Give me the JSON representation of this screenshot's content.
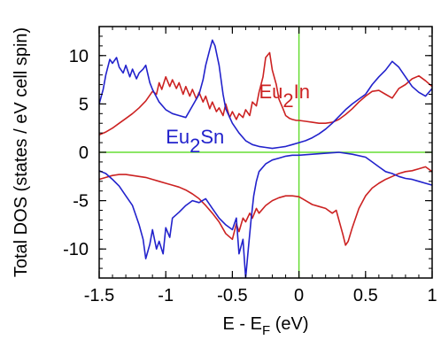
{
  "chart_data": {
    "type": "line",
    "title": "",
    "xlabel_main": "E - E",
    "xlabel_sub": "F",
    "xlabel_tail": " (eV)",
    "ylabel": "Total DOS (states / eV cell spin)",
    "xlim": [
      -1.5,
      1.0
    ],
    "ylim": [
      -13,
      13
    ],
    "xticks": [
      -1.5,
      -1.0,
      -0.5,
      0.0,
      0.5,
      1.0
    ],
    "xtick_labels": [
      "-1.5",
      "-1",
      "-0.5",
      "0",
      "0.5",
      "1"
    ],
    "yticks": [
      -10,
      -5,
      0,
      5,
      10
    ],
    "ytick_labels": [
      "-10",
      "-5",
      "0",
      "5",
      "10"
    ],
    "reference_color": "#66dd33",
    "annotations": [
      {
        "base": "Eu",
        "sub": "2",
        "tail": "In",
        "color": "#cc2222",
        "x": -0.3,
        "y": 5.6
      },
      {
        "base": "Eu",
        "sub": "2",
        "tail": "Sn",
        "color": "#2222cc",
        "x": -1.0,
        "y": 0.9
      }
    ],
    "series": [
      {
        "name": "Eu2In",
        "color": "#cc2222",
        "up_x": [
          -1.5,
          -1.45,
          -1.4,
          -1.35,
          -1.3,
          -1.25,
          -1.2,
          -1.15,
          -1.1,
          -1.07,
          -1.05,
          -1.03,
          -1.0,
          -0.97,
          -0.95,
          -0.92,
          -0.9,
          -0.87,
          -0.85,
          -0.82,
          -0.8,
          -0.77,
          -0.75,
          -0.72,
          -0.7,
          -0.67,
          -0.65,
          -0.62,
          -0.6,
          -0.57,
          -0.55,
          -0.52,
          -0.5,
          -0.47,
          -0.45,
          -0.42,
          -0.4,
          -0.37,
          -0.35,
          -0.32,
          -0.3,
          -0.27,
          -0.25,
          -0.22,
          -0.2,
          -0.17,
          -0.15,
          -0.12,
          -0.1,
          -0.07,
          -0.05,
          -0.02,
          0.0,
          0.05,
          0.1,
          0.15,
          0.2,
          0.25,
          0.3,
          0.35,
          0.4,
          0.45,
          0.5,
          0.55,
          0.6,
          0.65,
          0.7,
          0.75,
          0.8,
          0.85,
          0.9,
          0.95,
          1.0
        ],
        "up_y": [
          1.8,
          2.1,
          2.5,
          3.0,
          3.5,
          4.0,
          4.6,
          5.3,
          6.3,
          6.0,
          7.2,
          6.5,
          7.8,
          6.8,
          7.5,
          6.6,
          7.2,
          6.0,
          6.8,
          5.8,
          6.5,
          5.5,
          6.2,
          5.2,
          5.8,
          4.5,
          5.2,
          4.2,
          4.6,
          3.8,
          5.0,
          3.6,
          4.2,
          3.4,
          4.0,
          3.6,
          4.4,
          3.8,
          5.2,
          4.8,
          6.2,
          7.8,
          9.8,
          10.3,
          8.5,
          7.0,
          5.5,
          4.5,
          3.8,
          3.5,
          3.4,
          3.3,
          3.3,
          3.2,
          3.1,
          3.0,
          3.0,
          3.1,
          3.4,
          3.9,
          4.5,
          5.2,
          5.8,
          6.3,
          6.4,
          6.0,
          5.6,
          6.6,
          7.0,
          7.6,
          7.9,
          7.4,
          6.8
        ],
        "dn_x": [
          -1.5,
          -1.45,
          -1.4,
          -1.35,
          -1.3,
          -1.25,
          -1.2,
          -1.15,
          -1.1,
          -1.05,
          -1.0,
          -0.95,
          -0.9,
          -0.85,
          -0.8,
          -0.75,
          -0.7,
          -0.65,
          -0.6,
          -0.55,
          -0.5,
          -0.47,
          -0.45,
          -0.42,
          -0.4,
          -0.37,
          -0.35,
          -0.32,
          -0.3,
          -0.25,
          -0.2,
          -0.15,
          -0.1,
          -0.05,
          0.0,
          0.05,
          0.1,
          0.15,
          0.2,
          0.25,
          0.28,
          0.3,
          0.33,
          0.35,
          0.37,
          0.4,
          0.45,
          0.5,
          0.55,
          0.6,
          0.65,
          0.7,
          0.75,
          0.8,
          0.85,
          0.9,
          0.95,
          1.0
        ],
        "dn_y": [
          -2.8,
          -2.6,
          -2.4,
          -2.3,
          -2.3,
          -2.4,
          -2.5,
          -2.6,
          -2.8,
          -3.0,
          -3.2,
          -3.4,
          -3.6,
          -3.9,
          -4.3,
          -4.8,
          -5.5,
          -6.3,
          -7.2,
          -8.4,
          -9.0,
          -7.4,
          -8.2,
          -6.8,
          -7.2,
          -6.3,
          -6.8,
          -5.8,
          -6.3,
          -5.5,
          -5.0,
          -4.7,
          -4.5,
          -4.5,
          -4.6,
          -5.0,
          -5.4,
          -5.6,
          -5.8,
          -6.3,
          -6.0,
          -7.0,
          -8.5,
          -9.6,
          -9.2,
          -7.8,
          -5.8,
          -4.5,
          -3.7,
          -3.2,
          -2.8,
          -2.5,
          -2.2,
          -2.0,
          -1.9,
          -1.7,
          -1.5,
          -2.0
        ]
      },
      {
        "name": "Eu2Sn",
        "color": "#2222cc",
        "up_x": [
          -1.5,
          -1.47,
          -1.45,
          -1.42,
          -1.4,
          -1.37,
          -1.35,
          -1.32,
          -1.3,
          -1.27,
          -1.25,
          -1.22,
          -1.2,
          -1.17,
          -1.15,
          -1.12,
          -1.1,
          -1.05,
          -1.0,
          -0.95,
          -0.9,
          -0.85,
          -0.8,
          -0.75,
          -0.72,
          -0.7,
          -0.67,
          -0.65,
          -0.63,
          -0.6,
          -0.57,
          -0.55,
          -0.5,
          -0.45,
          -0.4,
          -0.35,
          -0.3,
          -0.25,
          -0.2,
          -0.15,
          -0.1,
          -0.05,
          0.0,
          0.05,
          0.1,
          0.15,
          0.2,
          0.25,
          0.3,
          0.35,
          0.4,
          0.45,
          0.5,
          0.55,
          0.6,
          0.65,
          0.7,
          0.75,
          0.8,
          0.85,
          0.9,
          0.95,
          1.0
        ],
        "up_y": [
          5.0,
          6.5,
          8.0,
          9.6,
          9.2,
          9.8,
          8.8,
          8.2,
          9.0,
          7.8,
          8.6,
          7.6,
          8.2,
          8.6,
          9.0,
          7.2,
          6.5,
          5.2,
          4.4,
          4.0,
          3.8,
          3.6,
          4.8,
          6.0,
          7.5,
          9.0,
          10.6,
          11.6,
          11.0,
          9.0,
          6.0,
          4.5,
          3.0,
          2.0,
          1.2,
          0.8,
          0.6,
          0.5,
          0.4,
          0.5,
          0.6,
          0.8,
          1.0,
          1.2,
          1.5,
          1.9,
          2.4,
          3.0,
          3.7,
          4.4,
          5.0,
          5.5,
          6.0,
          7.0,
          7.8,
          8.5,
          9.4,
          8.8,
          7.8,
          6.8,
          6.2,
          5.8,
          6.6
        ],
        "dn_x": [
          -1.5,
          -1.45,
          -1.4,
          -1.35,
          -1.3,
          -1.25,
          -1.2,
          -1.17,
          -1.15,
          -1.12,
          -1.1,
          -1.07,
          -1.05,
          -1.02,
          -1.0,
          -0.97,
          -0.95,
          -0.9,
          -0.85,
          -0.8,
          -0.75,
          -0.7,
          -0.65,
          -0.6,
          -0.55,
          -0.5,
          -0.47,
          -0.45,
          -0.42,
          -0.4,
          -0.38,
          -0.36,
          -0.34,
          -0.32,
          -0.3,
          -0.25,
          -0.2,
          -0.15,
          -0.1,
          -0.05,
          0.0,
          0.1,
          0.2,
          0.3,
          0.4,
          0.5,
          0.55,
          0.6,
          0.65,
          0.7,
          0.75,
          0.8,
          0.85,
          0.9,
          0.95,
          1.0
        ],
        "dn_y": [
          -1.9,
          -2.2,
          -2.8,
          -3.5,
          -4.5,
          -5.5,
          -7.5,
          -9.0,
          -11.0,
          -9.5,
          -8.0,
          -10.0,
          -9.2,
          -10.5,
          -7.8,
          -8.8,
          -6.8,
          -6.2,
          -5.5,
          -5.0,
          -5.2,
          -4.8,
          -5.8,
          -6.8,
          -7.5,
          -8.0,
          -6.8,
          -10.5,
          -9.0,
          -13.0,
          -10.0,
          -7.0,
          -4.5,
          -3.0,
          -2.0,
          -1.2,
          -0.8,
          -0.6,
          -0.4,
          -0.3,
          -0.3,
          -0.2,
          -0.1,
          0.0,
          -0.2,
          -0.5,
          -1.0,
          -1.5,
          -2.0,
          -2.2,
          -2.5,
          -2.7,
          -2.8,
          -3.0,
          -3.2,
          -3.4
        ]
      }
    ]
  }
}
